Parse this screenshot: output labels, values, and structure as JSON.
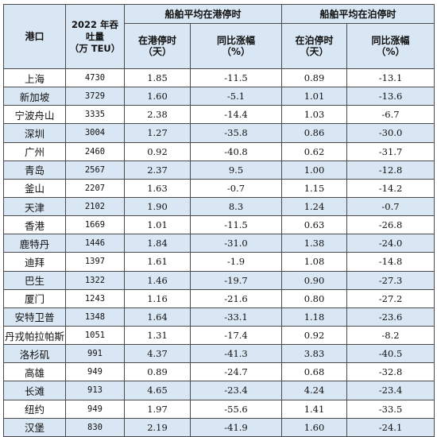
{
  "headers": {
    "port": "港口",
    "throughput_line1": "2022 年吞",
    "throughput_line2": "吐量",
    "throughput_line3": "（万 TEU）",
    "group_port": "船舶平均在港停时",
    "group_berth": "船舶平均在泊停时",
    "port_time_line1": "在港停时",
    "port_time_line2": "（天）",
    "port_yoy_line1": "同比涨幅",
    "port_yoy_line2": "（%）",
    "berth_time_line1": "在泊停时",
    "berth_time_line2": "（天）",
    "berth_yoy_line1": "同比涨幅",
    "berth_yoy_line2": "（%）"
  },
  "rows": [
    {
      "port": "上海",
      "throughput": "4730",
      "port_days": "1.85",
      "port_yoy": "-11.5",
      "berth_days": "0.89",
      "berth_yoy": "-13.1"
    },
    {
      "port": "新加坡",
      "throughput": "3729",
      "port_days": "1.60",
      "port_yoy": "-5.1",
      "berth_days": "1.01",
      "berth_yoy": "-13.6"
    },
    {
      "port": "宁波舟山",
      "throughput": "3335",
      "port_days": "2.38",
      "port_yoy": "-14.4",
      "berth_days": "1.03",
      "berth_yoy": "-6.7"
    },
    {
      "port": "深圳",
      "throughput": "3004",
      "port_days": "1.27",
      "port_yoy": "-35.8",
      "berth_days": "0.86",
      "berth_yoy": "-30.0"
    },
    {
      "port": "广州",
      "throughput": "2460",
      "port_days": "0.92",
      "port_yoy": "-40.8",
      "berth_days": "0.62",
      "berth_yoy": "-31.7"
    },
    {
      "port": "青岛",
      "throughput": "2567",
      "port_days": "2.37",
      "port_yoy": "9.5",
      "berth_days": "1.00",
      "berth_yoy": "-12.8"
    },
    {
      "port": "釜山",
      "throughput": "2207",
      "port_days": "1.63",
      "port_yoy": "-0.7",
      "berth_days": "1.15",
      "berth_yoy": "-14.2"
    },
    {
      "port": "天津",
      "throughput": "2102",
      "port_days": "1.90",
      "port_yoy": "8.3",
      "berth_days": "1.24",
      "berth_yoy": "-0.7"
    },
    {
      "port": "香港",
      "throughput": "1669",
      "port_days": "1.01",
      "port_yoy": "-11.5",
      "berth_days": "0.63",
      "berth_yoy": "-26.8"
    },
    {
      "port": "鹿特丹",
      "throughput": "1446",
      "port_days": "1.84",
      "port_yoy": "-31.0",
      "berth_days": "1.38",
      "berth_yoy": "-24.0"
    },
    {
      "port": "迪拜",
      "throughput": "1397",
      "port_days": "1.61",
      "port_yoy": "-1.9",
      "berth_days": "1.08",
      "berth_yoy": "-14.8"
    },
    {
      "port": "巴生",
      "throughput": "1322",
      "port_days": "1.46",
      "port_yoy": "-19.7",
      "berth_days": "0.90",
      "berth_yoy": "-27.3"
    },
    {
      "port": "厦门",
      "throughput": "1243",
      "port_days": "1.16",
      "port_yoy": "-21.6",
      "berth_days": "0.80",
      "berth_yoy": "-27.2"
    },
    {
      "port": "安特卫普",
      "throughput": "1348",
      "port_days": "1.64",
      "port_yoy": "-33.1",
      "berth_days": "1.18",
      "berth_yoy": "-23.6"
    },
    {
      "port": "丹戎帕拉帕斯",
      "throughput": "1051",
      "port_days": "1.31",
      "port_yoy": "-17.4",
      "berth_days": "0.92",
      "berth_yoy": "-8.2"
    },
    {
      "port": "洛杉矶",
      "throughput": "991",
      "port_days": "4.37",
      "port_yoy": "-41.3",
      "berth_days": "3.83",
      "berth_yoy": "-40.5"
    },
    {
      "port": "高雄",
      "throughput": "949",
      "port_days": "0.89",
      "port_yoy": "-24.7",
      "berth_days": "0.68",
      "berth_yoy": "-32.8"
    },
    {
      "port": "长滩",
      "throughput": "913",
      "port_days": "4.65",
      "port_yoy": "-23.4",
      "berth_days": "4.24",
      "berth_yoy": "-23.4"
    },
    {
      "port": "纽约",
      "throughput": "949",
      "port_days": "1.97",
      "port_yoy": "-55.6",
      "berth_days": "1.41",
      "berth_yoy": "-33.5"
    },
    {
      "port": "汉堡",
      "throughput": "830",
      "port_days": "2.19",
      "port_yoy": "-41.9",
      "berth_days": "1.60",
      "berth_yoy": "-24.1"
    }
  ]
}
